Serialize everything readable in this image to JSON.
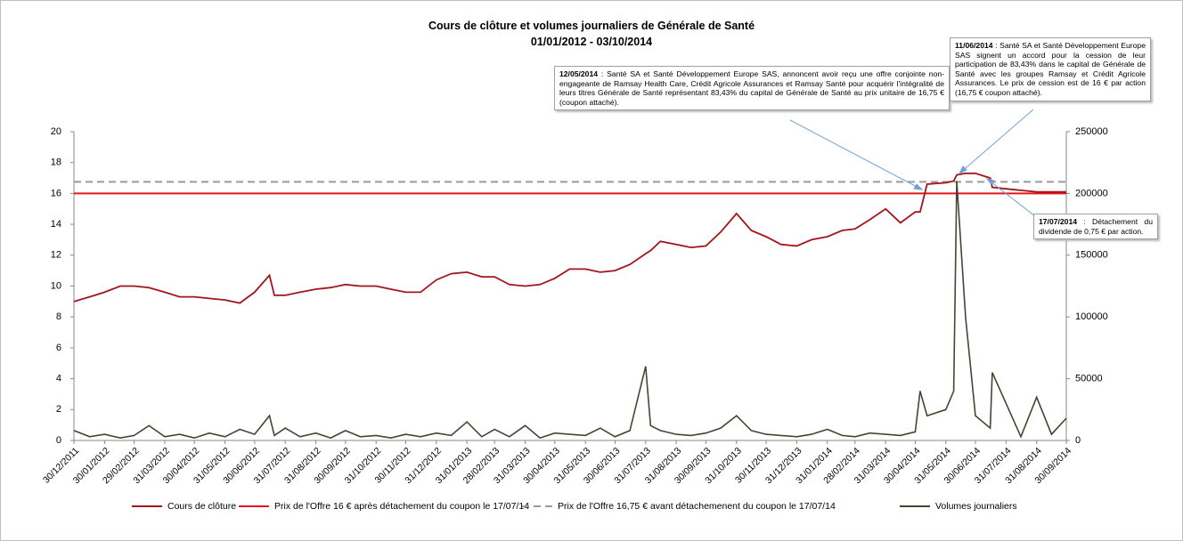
{
  "chart_data": {
    "type": "line",
    "title": "Cours de clôture et volumes journaliers  de Générale de Santé",
    "subtitle": "01/01/2012 - 03/10/2014",
    "x": [
      "30/12/2011",
      "15/01/2012",
      "30/01/2012",
      "15/02/2012",
      "29/02/2012",
      "15/03/2012",
      "31/03/2012",
      "15/04/2012",
      "30/04/2012",
      "15/05/2012",
      "31/05/2012",
      "15/06/2012",
      "30/06/2012",
      "15/07/2012",
      "20/07/2012",
      "31/07/2012",
      "15/08/2012",
      "31/08/2012",
      "15/09/2012",
      "30/09/2012",
      "15/10/2012",
      "31/10/2012",
      "15/11/2012",
      "30/11/2012",
      "15/12/2012",
      "31/12/2012",
      "15/01/2013",
      "31/01/2013",
      "15/02/2013",
      "28/02/2013",
      "15/03/2013",
      "31/03/2013",
      "15/04/2013",
      "30/04/2013",
      "15/05/2013",
      "31/05/2013",
      "15/06/2013",
      "30/06/2013",
      "15/07/2013",
      "31/07/2013",
      "05/08/2013",
      "15/08/2013",
      "31/08/2013",
      "15/09/2013",
      "30/09/2013",
      "15/10/2013",
      "31/10/2013",
      "15/11/2013",
      "30/11/2013",
      "15/12/2013",
      "31/12/2013",
      "15/01/2014",
      "31/01/2014",
      "15/02/2014",
      "28/02/2014",
      "15/03/2014",
      "31/03/2014",
      "15/04/2014",
      "30/04/2014",
      "05/05/2014",
      "12/05/2014",
      "31/05/2014",
      "08/06/2014",
      "11/06/2014",
      "20/06/2014",
      "30/06/2014",
      "15/07/2014",
      "17/07/2014",
      "31/07/2014",
      "15/08/2014",
      "31/08/2014",
      "15/09/2014",
      "30/09/2014"
    ],
    "series": [
      {
        "name": "Cours de clôture",
        "color": "#a3141c",
        "values": [
          9.0,
          9.3,
          9.6,
          10.0,
          10.0,
          9.9,
          9.6,
          9.3,
          9.3,
          9.2,
          9.1,
          8.9,
          9.6,
          10.7,
          9.4,
          9.4,
          9.6,
          9.8,
          9.9,
          10.1,
          10.0,
          10.0,
          9.8,
          9.6,
          9.6,
          10.4,
          10.8,
          10.9,
          10.6,
          10.6,
          10.1,
          10.0,
          10.1,
          10.5,
          11.1,
          11.1,
          10.9,
          11.0,
          11.4,
          12.1,
          12.3,
          12.9,
          12.7,
          12.5,
          12.6,
          13.5,
          14.7,
          13.6,
          13.2,
          12.7,
          12.6,
          13.0,
          13.2,
          13.6,
          13.7,
          14.3,
          15.0,
          14.1,
          14.8,
          14.8,
          16.6,
          16.7,
          16.8,
          17.2,
          17.3,
          17.3,
          17.0,
          16.4,
          16.3,
          16.2,
          16.1,
          16.1,
          16.1
        ]
      },
      {
        "name": "Volumes journaliers",
        "color": "#4a4331",
        "axis": "y2",
        "values": [
          8000,
          3000,
          5000,
          2000,
          4000,
          12000,
          3000,
          5000,
          2000,
          6000,
          3000,
          9000,
          5000,
          20000,
          4000,
          10000,
          3000,
          6000,
          2000,
          8000,
          3000,
          4000,
          2000,
          5000,
          3000,
          6000,
          4000,
          15000,
          3000,
          9000,
          3000,
          12000,
          2000,
          6000,
          5000,
          4000,
          10000,
          3000,
          8000,
          60000,
          12000,
          8000,
          5000,
          4000,
          6000,
          10000,
          20000,
          8000,
          5000,
          4000,
          3000,
          5000,
          9000,
          4000,
          3000,
          6000,
          5000,
          4000,
          7000,
          40000,
          20000,
          25000,
          40000,
          210000,
          100000,
          20000,
          10000,
          55000,
          30000,
          3000,
          35000,
          5000,
          18000
        ]
      }
    ],
    "reference_lines": [
      {
        "name": "Prix de l'Offre 16 € après détachement du coupon le 17/07/14",
        "value": 16,
        "color": "#e8141c",
        "dashed": false
      },
      {
        "name": "Prix de l'Offre 16,75 € avant détachemenent du coupon le 17/07/14",
        "value": 16.75,
        "color": "#9a9a9a",
        "dashed": true
      }
    ],
    "legend_order": [
      "series.0",
      "reference_lines.0",
      "reference_lines.1",
      "series.1"
    ],
    "xlim": [
      "30/12/2011",
      "30/09/2014"
    ],
    "xticks": [
      "30/12/2011",
      "30/01/2012",
      "29/02/2012",
      "31/03/2012",
      "30/04/2012",
      "31/05/2012",
      "30/06/2012",
      "31/07/2012",
      "31/08/2012",
      "30/09/2012",
      "31/10/2012",
      "30/11/2012",
      "31/12/2012",
      "31/01/2013",
      "28/02/2013",
      "31/03/2013",
      "30/04/2013",
      "31/05/2013",
      "30/06/2013",
      "31/07/2013",
      "31/08/2013",
      "30/09/2013",
      "31/10/2013",
      "30/11/2013",
      "31/12/2013",
      "31/01/2014",
      "28/02/2014",
      "31/03/2014",
      "30/04/2014",
      "31/05/2014",
      "30/06/2014",
      "31/07/2014",
      "31/08/2014",
      "30/09/2014"
    ],
    "ylim": [
      0,
      20
    ],
    "yticks": [
      0,
      2,
      4,
      6,
      8,
      10,
      12,
      14,
      16,
      18,
      20
    ],
    "y2lim": [
      0,
      250000
    ],
    "y2ticks": [
      0,
      50000,
      100000,
      150000,
      200000,
      250000
    ],
    "legend": "bottom",
    "annotations": [
      {
        "date": "12/05/2014",
        "text": " : Santé SA et Santé Développement  Europe SAS, annoncent avoir reçu une offre conjointe non-engageante de Ramsay Health Care, Crédit Agricole Assurances et Ramsay Santé pour acquérir l'intégralité de leurs titres Générale de Santé représentant 83,43% du capital de Générale de Santé au prix unitaire de 16,75 € (coupon attaché)."
      },
      {
        "date": "11/06/2014",
        "text": " : Santé SA et Santé Développement Europe SAS signent un accord pour la cession de leur participation de 83,43% dans le capital de Générale de Santé avec les groupes Ramsay et Crédit Agricole Assurances. Le prix de cession est de 16 € par action (16,75 € coupon attaché)."
      },
      {
        "date": "17/07/2014",
        "text": " : Détachement du dividende de 0,75 € par action."
      }
    ]
  }
}
